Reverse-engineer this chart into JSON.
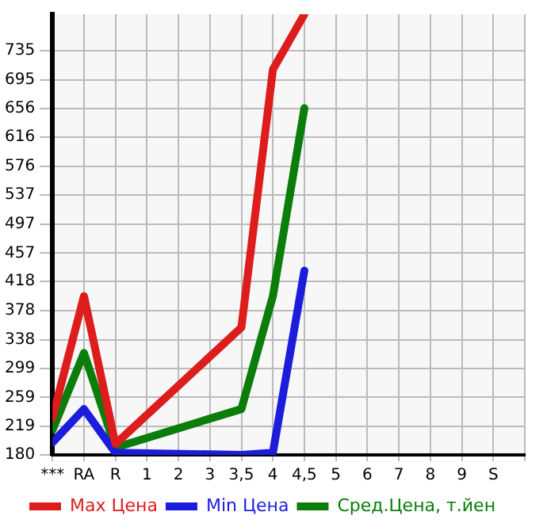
{
  "chart_data": {
    "type": "line",
    "categories": [
      "***",
      "RA",
      "R",
      "1",
      "2",
      "3",
      "3,5",
      "4",
      "4,5",
      "5",
      "6",
      "7",
      "8",
      "9",
      "S"
    ],
    "series": [
      {
        "name": "Max Цена",
        "color": "#dd1c1c",
        "values": [
          231,
          398,
          195,
          null,
          null,
          null,
          355,
          709,
          785,
          null,
          null,
          null,
          null,
          null,
          null
        ]
      },
      {
        "name": "Min Цена",
        "color": "#1c1cdd",
        "values": [
          197,
          243,
          183,
          null,
          null,
          null,
          180,
          183,
          433,
          null,
          null,
          null,
          null,
          null,
          null
        ]
      },
      {
        "name": "Сред.Цена, т.йен",
        "color": "#0a7d0a",
        "values": [
          214,
          320,
          190,
          null,
          null,
          null,
          243,
          398,
          656,
          null,
          null,
          null,
          null,
          null,
          null
        ]
      }
    ],
    "ylim": [
      180,
      785
    ],
    "yticks": [
      180,
      219,
      259,
      299,
      338,
      378,
      418,
      457,
      497,
      537,
      576,
      616,
      656,
      695,
      735
    ],
    "grid": true,
    "legend": "bottom",
    "marker": "none",
    "line_style": "solid"
  }
}
